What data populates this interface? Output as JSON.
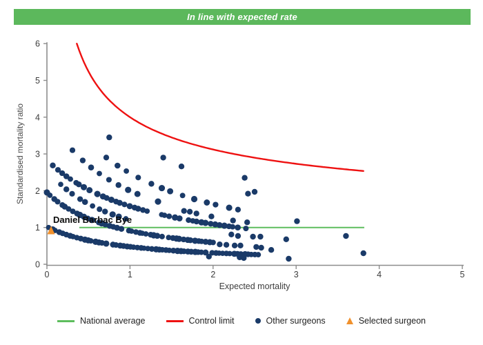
{
  "banner": {
    "text": "In line with expected rate",
    "bg_color": "#5cb85c",
    "text_color": "#ffffff"
  },
  "chart_data": {
    "type": "scatter",
    "title": "In line with expected rate",
    "xlabel": "Expected mortality",
    "ylabel": "Standardised mortality ratio",
    "xlim": [
      0,
      5
    ],
    "ylim": [
      0,
      6
    ],
    "x_ticks": [
      0,
      1,
      2,
      3,
      4,
      5
    ],
    "y_ticks": [
      0,
      1,
      2,
      3,
      4,
      5,
      6
    ],
    "grid": false,
    "axis_color": "#8c8c8c",
    "tick_label_color": "#3d3d3d",
    "national_average": {
      "y": 1,
      "x_start": 0.39,
      "x_end": 3.82,
      "color": "#5dbd5d"
    },
    "control_limit": {
      "formula": "y = offset + coef / sqrt(x)",
      "coef": 3,
      "offset": 1,
      "x_start": 0.36,
      "x_end": 3.81,
      "end_value": 2.54,
      "color": "#ee1111"
    },
    "selected_surgeon": {
      "name": "Daniel Barbac Bye",
      "x": 0.05,
      "y": 0.92,
      "color": "#f0912d"
    },
    "other_surgeons": {
      "color": "#1a3a68",
      "dot_radius": 4.2,
      "chains_note": "dense dotted curves y = k/(c+x) sampled between x_start and x_end",
      "chains": [
        {
          "k": 0.89,
          "c": 0.87,
          "x_start": 0.02,
          "x_end": 2.55,
          "n": 60
        },
        {
          "k": 1.7,
          "c": 0.87,
          "x_start": 0.0,
          "x_end": 2.0,
          "n": 46
        },
        {
          "k": 2.25,
          "c": 0.87,
          "x_start": 0.15,
          "x_end": 0.95,
          "n": 11
        },
        {
          "k": 3.55,
          "c": 1.25,
          "x_start": 0.07,
          "x_end": 2.4,
          "n": 44
        },
        {
          "k": 3.9,
          "c": 0.95,
          "x_start": 0.3,
          "x_end": 1.45,
          "n": 11
        },
        {
          "k": 4.83,
          "c": 0.95,
          "x_start": 0.7,
          "x_end": 2.3,
          "n": 13
        }
      ],
      "points": [
        [
          0.75,
          3.45
        ],
        [
          1.4,
          2.9
        ],
        [
          1.62,
          2.66
        ],
        [
          2.38,
          2.35
        ],
        [
          2.5,
          1.97
        ],
        [
          2.42,
          1.92
        ],
        [
          1.65,
          1.45
        ],
        [
          1.72,
          1.43
        ],
        [
          1.8,
          1.38
        ],
        [
          1.98,
          1.3
        ],
        [
          2.24,
          1.19
        ],
        [
          2.41,
          1.14
        ],
        [
          3.01,
          1.17
        ],
        [
          2.88,
          0.68
        ],
        [
          2.22,
          0.81
        ],
        [
          2.3,
          0.77
        ],
        [
          2.48,
          0.75
        ],
        [
          2.57,
          0.75
        ],
        [
          2.08,
          0.54
        ],
        [
          2.16,
          0.53
        ],
        [
          2.26,
          0.51
        ],
        [
          2.33,
          0.51
        ],
        [
          2.52,
          0.47
        ],
        [
          2.58,
          0.45
        ],
        [
          2.7,
          0.39
        ],
        [
          1.95,
          0.21
        ],
        [
          2.32,
          0.19
        ],
        [
          2.37,
          0.17
        ],
        [
          2.91,
          0.15
        ],
        [
          3.6,
          0.77
        ],
        [
          3.81,
          0.3
        ]
      ]
    }
  },
  "legend": {
    "items": [
      {
        "label": "National average",
        "marker": "line",
        "color": "#5dbd5d"
      },
      {
        "label": "Control limit",
        "marker": "line",
        "color": "#ee1111"
      },
      {
        "label": "Other surgeons",
        "marker": "dot",
        "color": "#1a3a68"
      },
      {
        "label": "Selected surgeon",
        "marker": "triangle",
        "color": "#f0912d"
      }
    ]
  }
}
